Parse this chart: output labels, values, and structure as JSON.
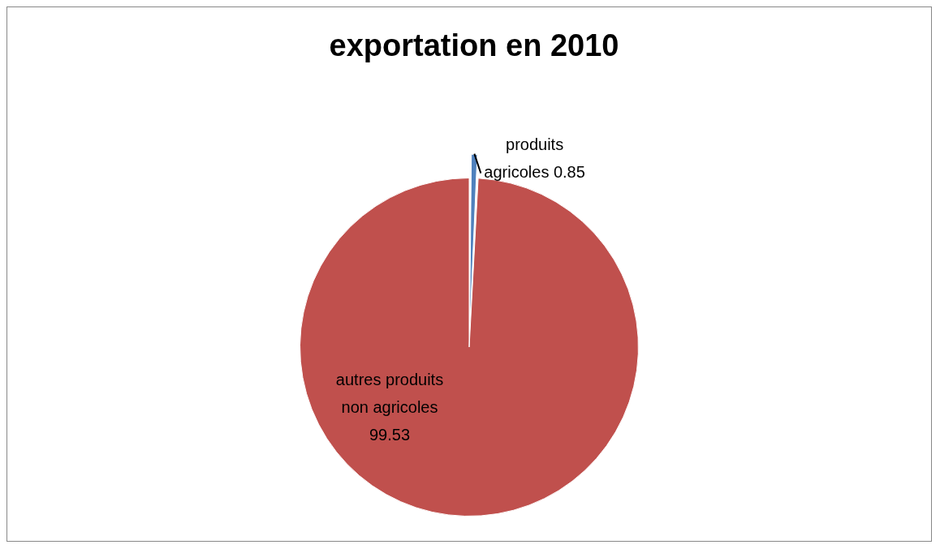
{
  "chart_data": {
    "type": "pie",
    "title": "exportation en 2010",
    "categories": [
      "produits agricoles",
      "autres produits non agricoles"
    ],
    "values": [
      0.85,
      99.53
    ],
    "colors": [
      "#4f81bd",
      "#c0504d"
    ],
    "data_labels": true,
    "legend": false
  }
}
